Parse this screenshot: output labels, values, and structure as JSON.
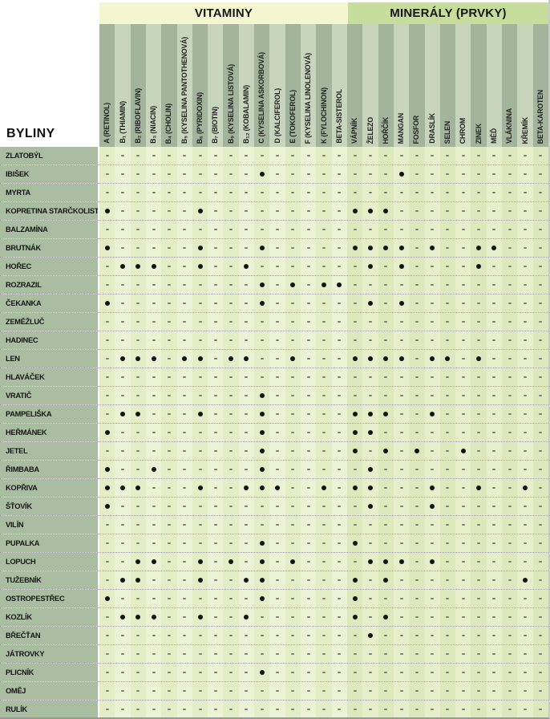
{
  "chart_data": {
    "type": "table",
    "title": "",
    "corner_label": "BYLINY",
    "groups": [
      {
        "label": "VITAMINY",
        "col_span": 16
      },
      {
        "label": "MINERÁLY (PRVKY)",
        "col_span": 13
      }
    ],
    "columns": [
      "A (RETINOL)",
      "B₁ (THIAMIN)",
      "B₂ (RIBOFLAVIN)",
      "B₃ (NIACIN)",
      "B₄ (CHOLIN)",
      "B₅ (KYSELINA PANTOTHENOVÁ)",
      "B₆ (PYRIDOXIN)",
      "B₇ (BIOTIN)",
      "B₉ (KYSELINA LISTOVÁ)",
      "B₁₂ (KOBALAMIN)",
      "C (KYSELINA ASKORBOVÁ)",
      "D (KALCIFEROL)",
      "E (TOKOFEROL)",
      "F (KYSELINA LINOLENOVÁ)",
      "K (FYLOCHINON)",
      "BETA-SISTEROL",
      "VÁPNÍK",
      "ŽELEZO",
      "HOŘČÍK",
      "MANGAN",
      "FOSFOR",
      "DRASLÍK",
      "SELEN",
      "CHROM",
      "ZINEK",
      "MĚĎ",
      "VLÁKNINA",
      "KŘEMÍK",
      "BETA-KAROTEN"
    ],
    "rows": [
      {
        "name": "ZLATOBÝL",
        "dot_columns": []
      },
      {
        "name": "IBIŠEK",
        "dot_columns": [
          10,
          19
        ]
      },
      {
        "name": "MYRTA",
        "dot_columns": []
      },
      {
        "name": "KOPRETINA STARČKOLISTÁ",
        "dot_columns": [
          0,
          6,
          16,
          17,
          18
        ]
      },
      {
        "name": "BALZAMÍNA",
        "dot_columns": []
      },
      {
        "name": "BRUTNÁK",
        "dot_columns": [
          0,
          6,
          10,
          16,
          17,
          18,
          19,
          21,
          24,
          25
        ]
      },
      {
        "name": "HOŘEC",
        "dot_columns": [
          1,
          2,
          3,
          6,
          9,
          17,
          19,
          24
        ]
      },
      {
        "name": "ROZRAZIL",
        "dot_columns": [
          10,
          12,
          14,
          15
        ]
      },
      {
        "name": "ČEKANKA",
        "dot_columns": [
          0,
          10,
          17,
          19
        ]
      },
      {
        "name": "ZEMĚŽLUČ",
        "dot_columns": []
      },
      {
        "name": "HADINEC",
        "dot_columns": []
      },
      {
        "name": "LEN",
        "dot_columns": [
          1,
          2,
          3,
          5,
          6,
          8,
          9,
          12,
          16,
          17,
          18,
          19,
          21,
          22,
          24
        ]
      },
      {
        "name": "HLAVÁČEK",
        "dot_columns": []
      },
      {
        "name": "VRATIČ",
        "dot_columns": [
          10
        ]
      },
      {
        "name": "PAMPELIŠKA",
        "dot_columns": [
          1,
          2,
          6,
          10,
          16,
          17,
          18,
          21
        ]
      },
      {
        "name": "HEŘMÁNEK",
        "dot_columns": [
          0,
          10,
          16,
          17
        ]
      },
      {
        "name": "JETEL",
        "dot_columns": [
          10,
          16,
          18,
          20,
          23
        ]
      },
      {
        "name": "ŘIMBABA",
        "dot_columns": [
          0,
          3,
          10,
          17
        ]
      },
      {
        "name": "KOPŘIVA",
        "dot_columns": [
          0,
          1,
          2,
          6,
          9,
          10,
          11,
          14,
          16,
          17,
          21,
          24,
          27
        ]
      },
      {
        "name": "ŠŤOVÍK",
        "dot_columns": [
          0,
          17,
          21
        ]
      },
      {
        "name": "VILÍN",
        "dot_columns": []
      },
      {
        "name": "PUPALKA",
        "dot_columns": [
          10,
          16
        ]
      },
      {
        "name": "LOPUCH",
        "dot_columns": [
          2,
          3,
          6,
          8,
          10,
          12,
          17,
          18,
          19,
          21
        ]
      },
      {
        "name": "TUŽEBNÍK",
        "dot_columns": [
          1,
          2,
          6,
          9,
          10,
          16,
          18,
          27
        ]
      },
      {
        "name": "OSTROPESTŘEC",
        "dot_columns": [
          0,
          10,
          16
        ]
      },
      {
        "name": "KOZLÍK",
        "dot_columns": [
          1,
          2,
          3,
          6,
          9,
          16,
          18
        ]
      },
      {
        "name": "BŘEČŤAN",
        "dot_columns": [
          17
        ]
      },
      {
        "name": "JÁTROVKY",
        "dot_columns": []
      },
      {
        "name": "PLICNÍK",
        "dot_columns": [
          10
        ]
      },
      {
        "name": "OMĚJ",
        "dot_columns": []
      },
      {
        "name": "RULÍK",
        "dot_columns": []
      }
    ],
    "markers": {
      "present": "filled-dot",
      "absent": "small-dash"
    },
    "layout_hints": {
      "legend": "none",
      "grid": "dotted-row-separators",
      "column_header_orientation": "vertical-bottom-to-top"
    },
    "colors": {
      "vitamins_band": "#f4f6d0",
      "minerals_band": "#c6dd9b",
      "header_stripe_dark": "#a2b49b",
      "header_stripe_light": "#c8d5bd",
      "row_label_bg": "#a9bea1",
      "cell_bg_light": "#ecf3d4",
      "cell_bg_dark": "#e3edc6",
      "dot": "#151515"
    }
  }
}
